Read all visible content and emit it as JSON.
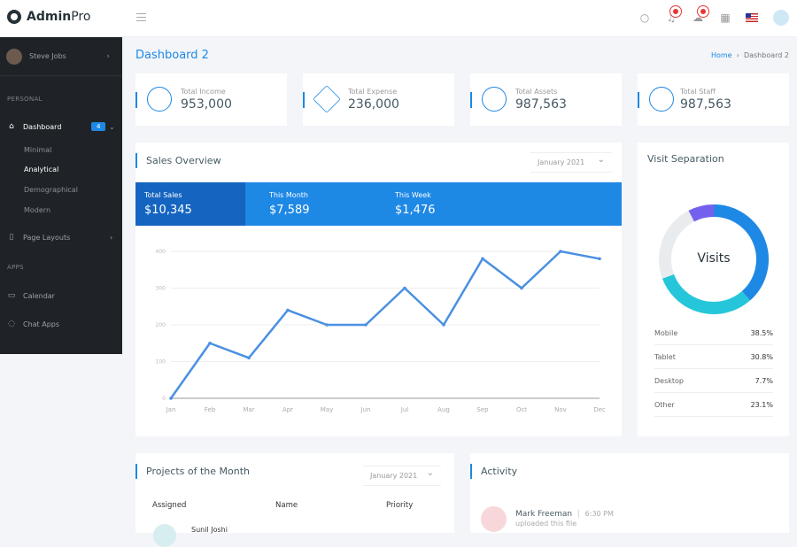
{
  "app": {
    "brand_bold": "Admin",
    "brand_light": "Pro"
  },
  "topbar": {
    "icons": [
      "menu-icon",
      "search-icon",
      "bell-icon",
      "inbox-icon",
      "apps-grid-icon",
      "us-flag-icon",
      "user-avatar"
    ],
    "notification_color": "#e53935"
  },
  "sidebar": {
    "user": "Steve Jobs",
    "sections": {
      "personal": "PERSONAL",
      "apps": "APPS"
    },
    "dashboard": {
      "label": "Dashboard",
      "badge": "4",
      "children": [
        "Minimal",
        "Analytical",
        "Demographical",
        "Modern"
      ],
      "active_child": "Analytical"
    },
    "page_layouts": "Page Layouts",
    "calendar": "Calendar",
    "chat": "Chat Apps"
  },
  "page": {
    "title": "Dashboard 2",
    "breadcrumb": [
      "Home",
      "Dashboard 2"
    ]
  },
  "stats": [
    {
      "label": "Total Income",
      "value": "953,000",
      "icon": "pencil-shield-icon"
    },
    {
      "label": "Total Expense",
      "value": "236,000",
      "icon": "layers-icon"
    },
    {
      "label": "Total Assets",
      "value": "987,563",
      "icon": "target-icon"
    },
    {
      "label": "Total Staff",
      "value": "987,563",
      "icon": "staff-icon"
    }
  ],
  "sales": {
    "title": "Sales Overview",
    "period": "January 2021",
    "summary": [
      {
        "label": "Total Sales",
        "value": "$10,345"
      },
      {
        "label": "This Month",
        "value": "$7,589"
      },
      {
        "label": "This Week",
        "value": "$1,476"
      }
    ]
  },
  "chart_data": {
    "type": "line",
    "categories": [
      "Jan",
      "Feb",
      "Mar",
      "Apr",
      "May",
      "Jun",
      "Jul",
      "Aug",
      "Sep",
      "Oct",
      "Nov",
      "Dec"
    ],
    "values": [
      0,
      150,
      110,
      240,
      200,
      200,
      300,
      200,
      380,
      300,
      400,
      380
    ],
    "yticks": [
      "0",
      "100",
      "200",
      "300",
      "400"
    ],
    "ylim": [
      0,
      400
    ],
    "grid": true,
    "color": "#4a90e2"
  },
  "visits": {
    "title": "Visit Separation",
    "center_label": "Visits",
    "items": [
      {
        "label": "Mobile",
        "value": "38.5%",
        "pct": 38.5,
        "color": "#1e88e5"
      },
      {
        "label": "Tablet",
        "value": "30.8%",
        "pct": 30.8,
        "color": "#26c6da"
      },
      {
        "label": "Desktop",
        "value": "7.7%",
        "pct": 7.7,
        "color": "#7460ee"
      },
      {
        "label": "Other",
        "value": "23.1%",
        "pct": 23.1,
        "color": "#e9ecef"
      }
    ]
  },
  "projects": {
    "title": "Projects of the Month",
    "period": "January 2021",
    "columns": [
      "Assigned",
      "Name",
      "Priority"
    ],
    "first_row_name": "Sunil Joshi"
  },
  "activity": {
    "title": "Activity",
    "items": [
      {
        "name": "Mark Freeman",
        "time": "6:30 PM",
        "text": "uploaded this file"
      }
    ]
  }
}
